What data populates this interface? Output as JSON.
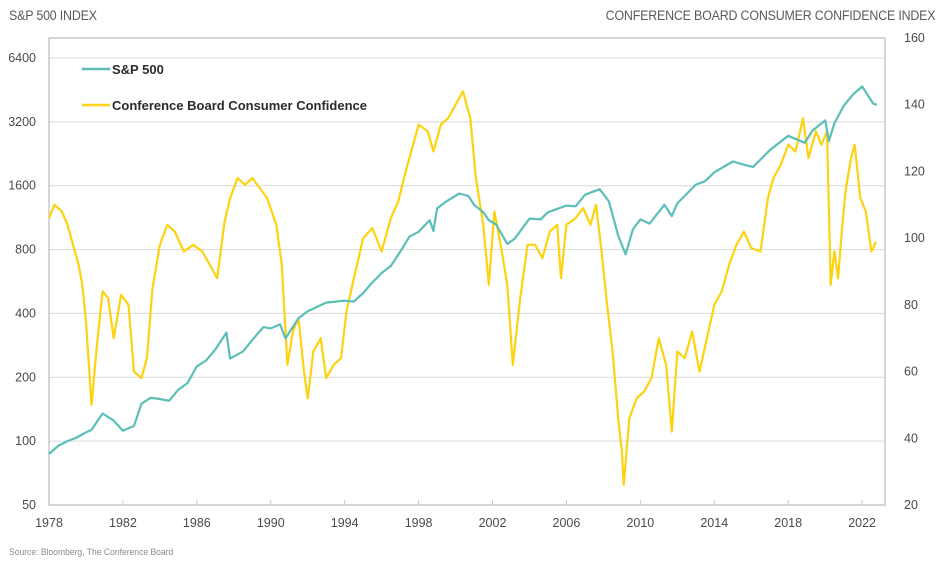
{
  "header": {
    "left_axis_title": "S&P 500 INDEX",
    "right_axis_title": "CONFERENCE BOARD CONSUMER CONFIDENCE INDEX"
  },
  "footer": {
    "source": "Source: Bloomberg, The Conference Board"
  },
  "colors": {
    "sp500": "#5bbfb8",
    "cci": "#fdd20f",
    "grid": "#d9d9d9",
    "frame": "#c8c8c8"
  },
  "chart_data": {
    "type": "line",
    "title": "",
    "xlabel": "",
    "ylabel_left": "S&P 500 INDEX",
    "ylabel_right": "CONFERENCE BOARD CONSUMER CONFIDENCE INDEX",
    "x_range": [
      1978,
      2023.3
    ],
    "x_ticks": [
      "1978",
      "1982",
      "1986",
      "1990",
      "1994",
      "1998",
      "2002",
      "2006",
      "2010",
      "2014",
      "2018",
      "2022"
    ],
    "y_left": {
      "scale": "log2",
      "range": [
        50,
        6400
      ],
      "ticks": [
        "50",
        "100",
        "200",
        "400",
        "800",
        "1600",
        "3200",
        "6400"
      ]
    },
    "y_right": {
      "scale": "linear",
      "range": [
        20,
        160
      ],
      "ticks": [
        "20",
        "40",
        "60",
        "80",
        "100",
        "120",
        "140",
        "160"
      ]
    },
    "grid": true,
    "legend_position": "top-left",
    "legend": [
      "S&P 500",
      "Conference Board Consumer Confidence"
    ],
    "series": [
      {
        "name": "S&P 500",
        "axis": "left",
        "x": [
          1978.0,
          1978.5,
          1979.0,
          1979.5,
          1980.0,
          1980.3,
          1980.9,
          1981.5,
          1982.0,
          1982.6,
          1983.0,
          1983.5,
          1984.0,
          1984.5,
          1985.0,
          1985.5,
          1986.0,
          1986.5,
          1987.0,
          1987.6,
          1987.8,
          1988.5,
          1989.0,
          1989.6,
          1990.0,
          1990.5,
          1990.8,
          1991.5,
          1992.0,
          1993.0,
          1994.0,
          1994.5,
          1995.0,
          1995.5,
          1996.0,
          1996.5,
          1997.0,
          1997.5,
          1998.0,
          1998.6,
          1998.8,
          1999.0,
          1999.5,
          2000.2,
          2000.7,
          2001.0,
          2001.5,
          2001.8,
          2002.2,
          2002.8,
          2003.2,
          2004.0,
          2004.6,
          2005.0,
          2006.0,
          2006.5,
          2007.0,
          2007.8,
          2008.3,
          2008.8,
          2009.2,
          2009.6,
          2010.0,
          2010.5,
          2011.3,
          2011.7,
          2012.0,
          2013.0,
          2013.5,
          2014.0,
          2015.0,
          2015.7,
          2016.1,
          2017.0,
          2018.0,
          2018.9,
          2019.3,
          2020.0,
          2020.2,
          2020.5,
          2021.0,
          2021.5,
          2022.0,
          2022.4,
          2022.6,
          2022.8
        ],
        "values": [
          87,
          95,
          100,
          104,
          110,
          113,
          135,
          125,
          112,
          118,
          150,
          160,
          158,
          155,
          175,
          188,
          225,
          240,
          270,
          325,
          245,
          265,
          300,
          345,
          340,
          355,
          305,
          380,
          410,
          450,
          460,
          455,
          500,
          560,
          620,
          670,
          780,
          920,
          970,
          1100,
          980,
          1250,
          1350,
          1470,
          1430,
          1300,
          1200,
          1100,
          1050,
          850,
          900,
          1120,
          1110,
          1200,
          1290,
          1280,
          1450,
          1540,
          1350,
          930,
          760,
          1000,
          1110,
          1060,
          1300,
          1150,
          1320,
          1620,
          1680,
          1850,
          2080,
          2000,
          1960,
          2350,
          2750,
          2550,
          2900,
          3250,
          2600,
          3150,
          3800,
          4300,
          4700,
          4150,
          3900,
          3850
        ]
      },
      {
        "name": "Conference Board Consumer Confidence",
        "axis": "right",
        "x": [
          1978.0,
          1978.3,
          1978.7,
          1979.0,
          1979.3,
          1979.6,
          1979.8,
          1980.0,
          1980.3,
          1980.6,
          1980.9,
          1981.2,
          1981.5,
          1981.9,
          1982.3,
          1982.6,
          1983.0,
          1983.3,
          1983.6,
          1984.0,
          1984.4,
          1984.8,
          1985.3,
          1985.8,
          1986.3,
          1986.7,
          1987.1,
          1987.5,
          1987.8,
          1988.2,
          1988.6,
          1989.0,
          1989.4,
          1989.8,
          1990.3,
          1990.6,
          1990.9,
          1991.2,
          1991.5,
          1991.8,
          1992.0,
          1992.3,
          1992.7,
          1993.0,
          1993.4,
          1993.8,
          1994.1,
          1994.5,
          1995.0,
          1995.5,
          1996.0,
          1996.5,
          1996.9,
          1997.3,
          1997.7,
          1998.0,
          1998.5,
          1998.8,
          1999.2,
          1999.6,
          2000.0,
          2000.4,
          2000.8,
          2001.1,
          2001.5,
          2001.8,
          2002.1,
          2002.5,
          2002.8,
          2003.1,
          2003.5,
          2003.9,
          2004.3,
          2004.7,
          2005.1,
          2005.5,
          2005.7,
          2006.0,
          2006.5,
          2006.9,
          2007.3,
          2007.6,
          2007.9,
          2008.2,
          2008.5,
          2008.8,
          2009.0,
          2009.1,
          2009.4,
          2009.8,
          2010.2,
          2010.6,
          2011.0,
          2011.4,
          2011.7,
          2012.0,
          2012.4,
          2012.8,
          2013.2,
          2013.6,
          2014.0,
          2014.4,
          2014.8,
          2015.2,
          2015.6,
          2016.0,
          2016.5,
          2016.9,
          2017.2,
          2017.6,
          2018.0,
          2018.4,
          2018.8,
          2019.1,
          2019.5,
          2019.8,
          2020.1,
          2020.3,
          2020.5,
          2020.7,
          2020.9,
          2021.1,
          2021.4,
          2021.6,
          2021.9,
          2022.2,
          2022.5,
          2022.6,
          2022.75
        ],
        "values": [
          106,
          110,
          108,
          104,
          98,
          92,
          86,
          75,
          50,
          68,
          84,
          82,
          70,
          83,
          80,
          60,
          58,
          64,
          85,
          98,
          104,
          102,
          96,
          98,
          96,
          92,
          88,
          105,
          112,
          118,
          116,
          118,
          115,
          112,
          104,
          92,
          62,
          72,
          76,
          60,
          52,
          66,
          70,
          58,
          62,
          64,
          78,
          88,
          100,
          103,
          96,
          106,
          111,
          120,
          128,
          134,
          132,
          126,
          134,
          136,
          140,
          144,
          136,
          118,
          104,
          86,
          108,
          96,
          86,
          62,
          82,
          98,
          98,
          94,
          102,
          104,
          88,
          104,
          106,
          109,
          104,
          110,
          96,
          80,
          66,
          46,
          36,
          26,
          46,
          52,
          54,
          58,
          70,
          62,
          42,
          66,
          64,
          72,
          60,
          70,
          80,
          84,
          92,
          98,
          102,
          97,
          96,
          112,
          118,
          122,
          128,
          126,
          136,
          124,
          132,
          128,
          132,
          86,
          96,
          88,
          102,
          114,
          124,
          128,
          112,
          108,
          96,
          97,
          99
        ]
      }
    ]
  }
}
